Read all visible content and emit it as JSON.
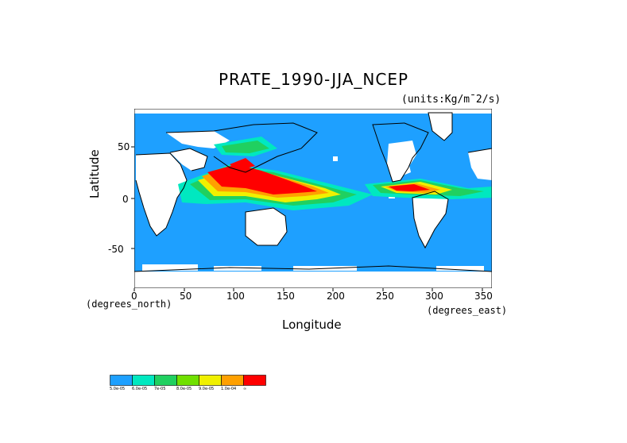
{
  "title": "PRATE_1990-JJA_NCEP",
  "units": "(units:Kg/m¯2/s)",
  "axes": {
    "ylabel": "Latitude",
    "xlabel": "Longitude",
    "y_unit": "(degrees_north)",
    "x_unit": "(degrees_east)",
    "x_ticks": [
      "0",
      "50",
      "100",
      "150",
      "200",
      "250",
      "300",
      "350"
    ],
    "y_ticks": [
      "50",
      "0",
      "-50"
    ]
  },
  "map": {
    "lon_range": [
      0,
      360
    ],
    "lat_range": [
      -90,
      90
    ],
    "colors": {
      "ocean_background": "#1ea0ff",
      "land_missing": "#ffffff",
      "coast": "#000000"
    }
  },
  "legend": {
    "colors": [
      "#1ea0ff",
      "#00e8c0",
      "#20d060",
      "#70e000",
      "#f0f000",
      "#ffa000",
      "#ff0000"
    ],
    "labels": [
      "5.0e-05",
      "6.0e-05",
      "7e-05",
      "8.0e-05",
      "9.0e-05",
      "1.0e-04",
      "∞"
    ]
  }
}
